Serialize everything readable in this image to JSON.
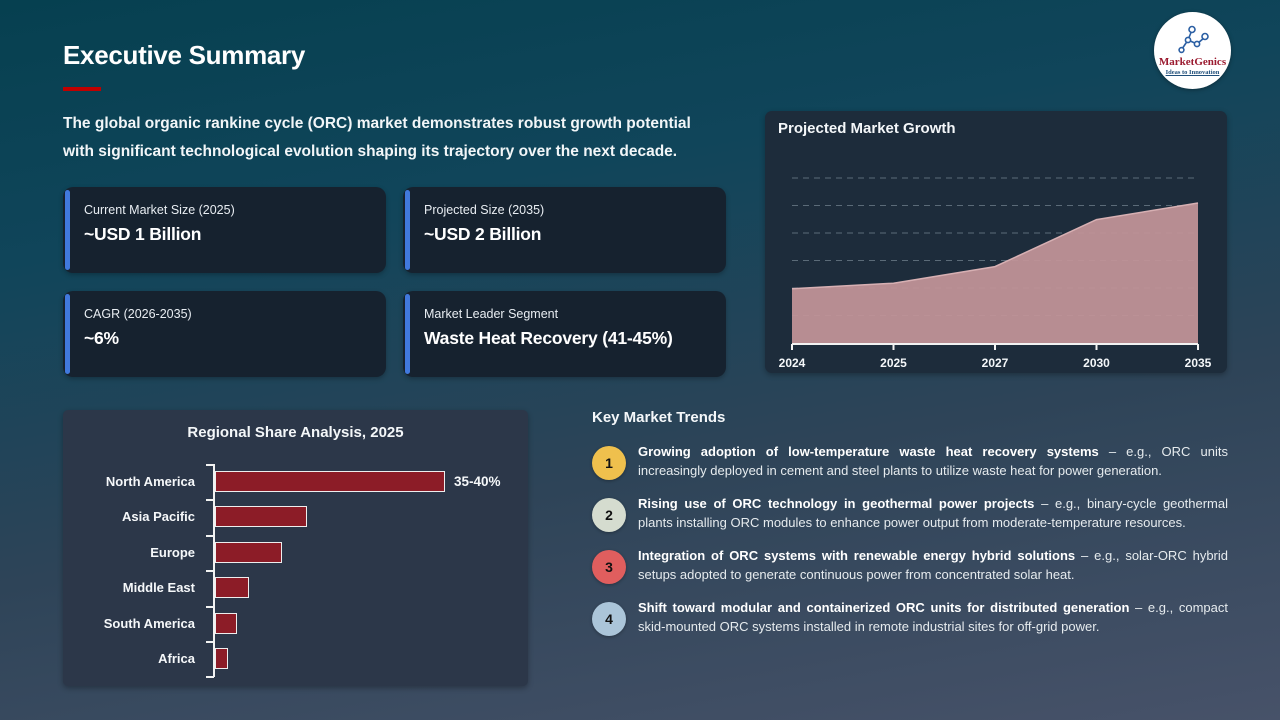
{
  "slide": {
    "title": "Executive Summary",
    "intro_line1": "The global organic rankine cycle (ORC) market demonstrates robust growth potential",
    "intro_line2": "with significant technological evolution shaping its trajectory over the next decade."
  },
  "logo": {
    "name": "MarketGenics",
    "tagline": "Ideas to Innovation"
  },
  "stat_cards": [
    {
      "label": "Current Market Size (2025)",
      "value": "~USD 1 Billion"
    },
    {
      "label": "Projected Size (2035)",
      "value": "~USD 2 Billion"
    },
    {
      "label": "CAGR (2026-2035)",
      "value": "~6%"
    },
    {
      "label": "Market Leader Segment",
      "value": "Waste Heat Recovery (41-45%)"
    }
  ],
  "chart_data": [
    {
      "type": "area",
      "title": "Projected Market Growth",
      "x": [
        "2024",
        "2025",
        "2027",
        "2030",
        "2035"
      ],
      "values": [
        1.0,
        1.1,
        1.4,
        2.25,
        2.55
      ],
      "ylim": [
        0,
        3.0
      ],
      "ylabel": "",
      "xlabel": "",
      "grid": "dashed-horizontal",
      "legend": "none",
      "fill_color": "#c39599",
      "note": "no y-axis tick labels shown; values estimated in USD Billion"
    },
    {
      "type": "bar",
      "title": "Regional Share Analysis, 2025",
      "orientation": "horizontal",
      "categories": [
        "North America",
        "Asia Pacific",
        "Europe",
        "Middle East",
        "South America",
        "Africa"
      ],
      "values": [
        37.5,
        15,
        11,
        5.5,
        3.6,
        2.1
      ],
      "data_labels": [
        "35-40%",
        "",
        "",
        "",
        "",
        ""
      ],
      "xlim": [
        0,
        40
      ],
      "grid": "off",
      "legend": "none",
      "bar_color": "#8c1c27",
      "note": "only North America carries a printed label (35-40%); other values estimated from bar lengths"
    }
  ],
  "trends": {
    "title": "Key Market Trends",
    "items": [
      {
        "num": "1",
        "badge_color": "#efc04d",
        "bold": "Growing adoption of low-temperature waste heat recovery systems",
        "rest": " – e.g., ORC units increasingly deployed in cement and steel plants to utilize waste heat for power generation."
      },
      {
        "num": "2",
        "badge_color": "#d5dccf",
        "bold": "Rising use of ORC technology in geothermal power projects",
        "rest": " – e.g., binary-cycle geothermal plants installing ORC modules to enhance power output from moderate-temperature resources."
      },
      {
        "num": "3",
        "badge_color": "#e05e5e",
        "bold": "Integration of ORC systems with renewable energy hybrid solutions",
        "rest": " – e.g., solar-ORC hybrid setups adopted to generate continuous power from concentrated solar heat."
      },
      {
        "num": "4",
        "badge_color": "#abc5d9",
        "bold": "Shift toward modular and containerized ORC units for distributed generation",
        "rest": " – e.g., compact skid-mounted ORC systems installed in remote industrial sites for off-grid power."
      }
    ]
  },
  "colors": {
    "background_top": "#064050",
    "background_bottom": "#475269",
    "card_bg": "#16222f",
    "card_accent": "#4179dd",
    "growth_panel_bg": "#1d2c3b",
    "regional_panel_bg": "#2c3749",
    "area_fill": "#c39599",
    "bar_red": "#8c1c27",
    "title_underline": "#c00000",
    "logo_red": "#9b1b30",
    "logo_blue": "#1f4e79"
  }
}
